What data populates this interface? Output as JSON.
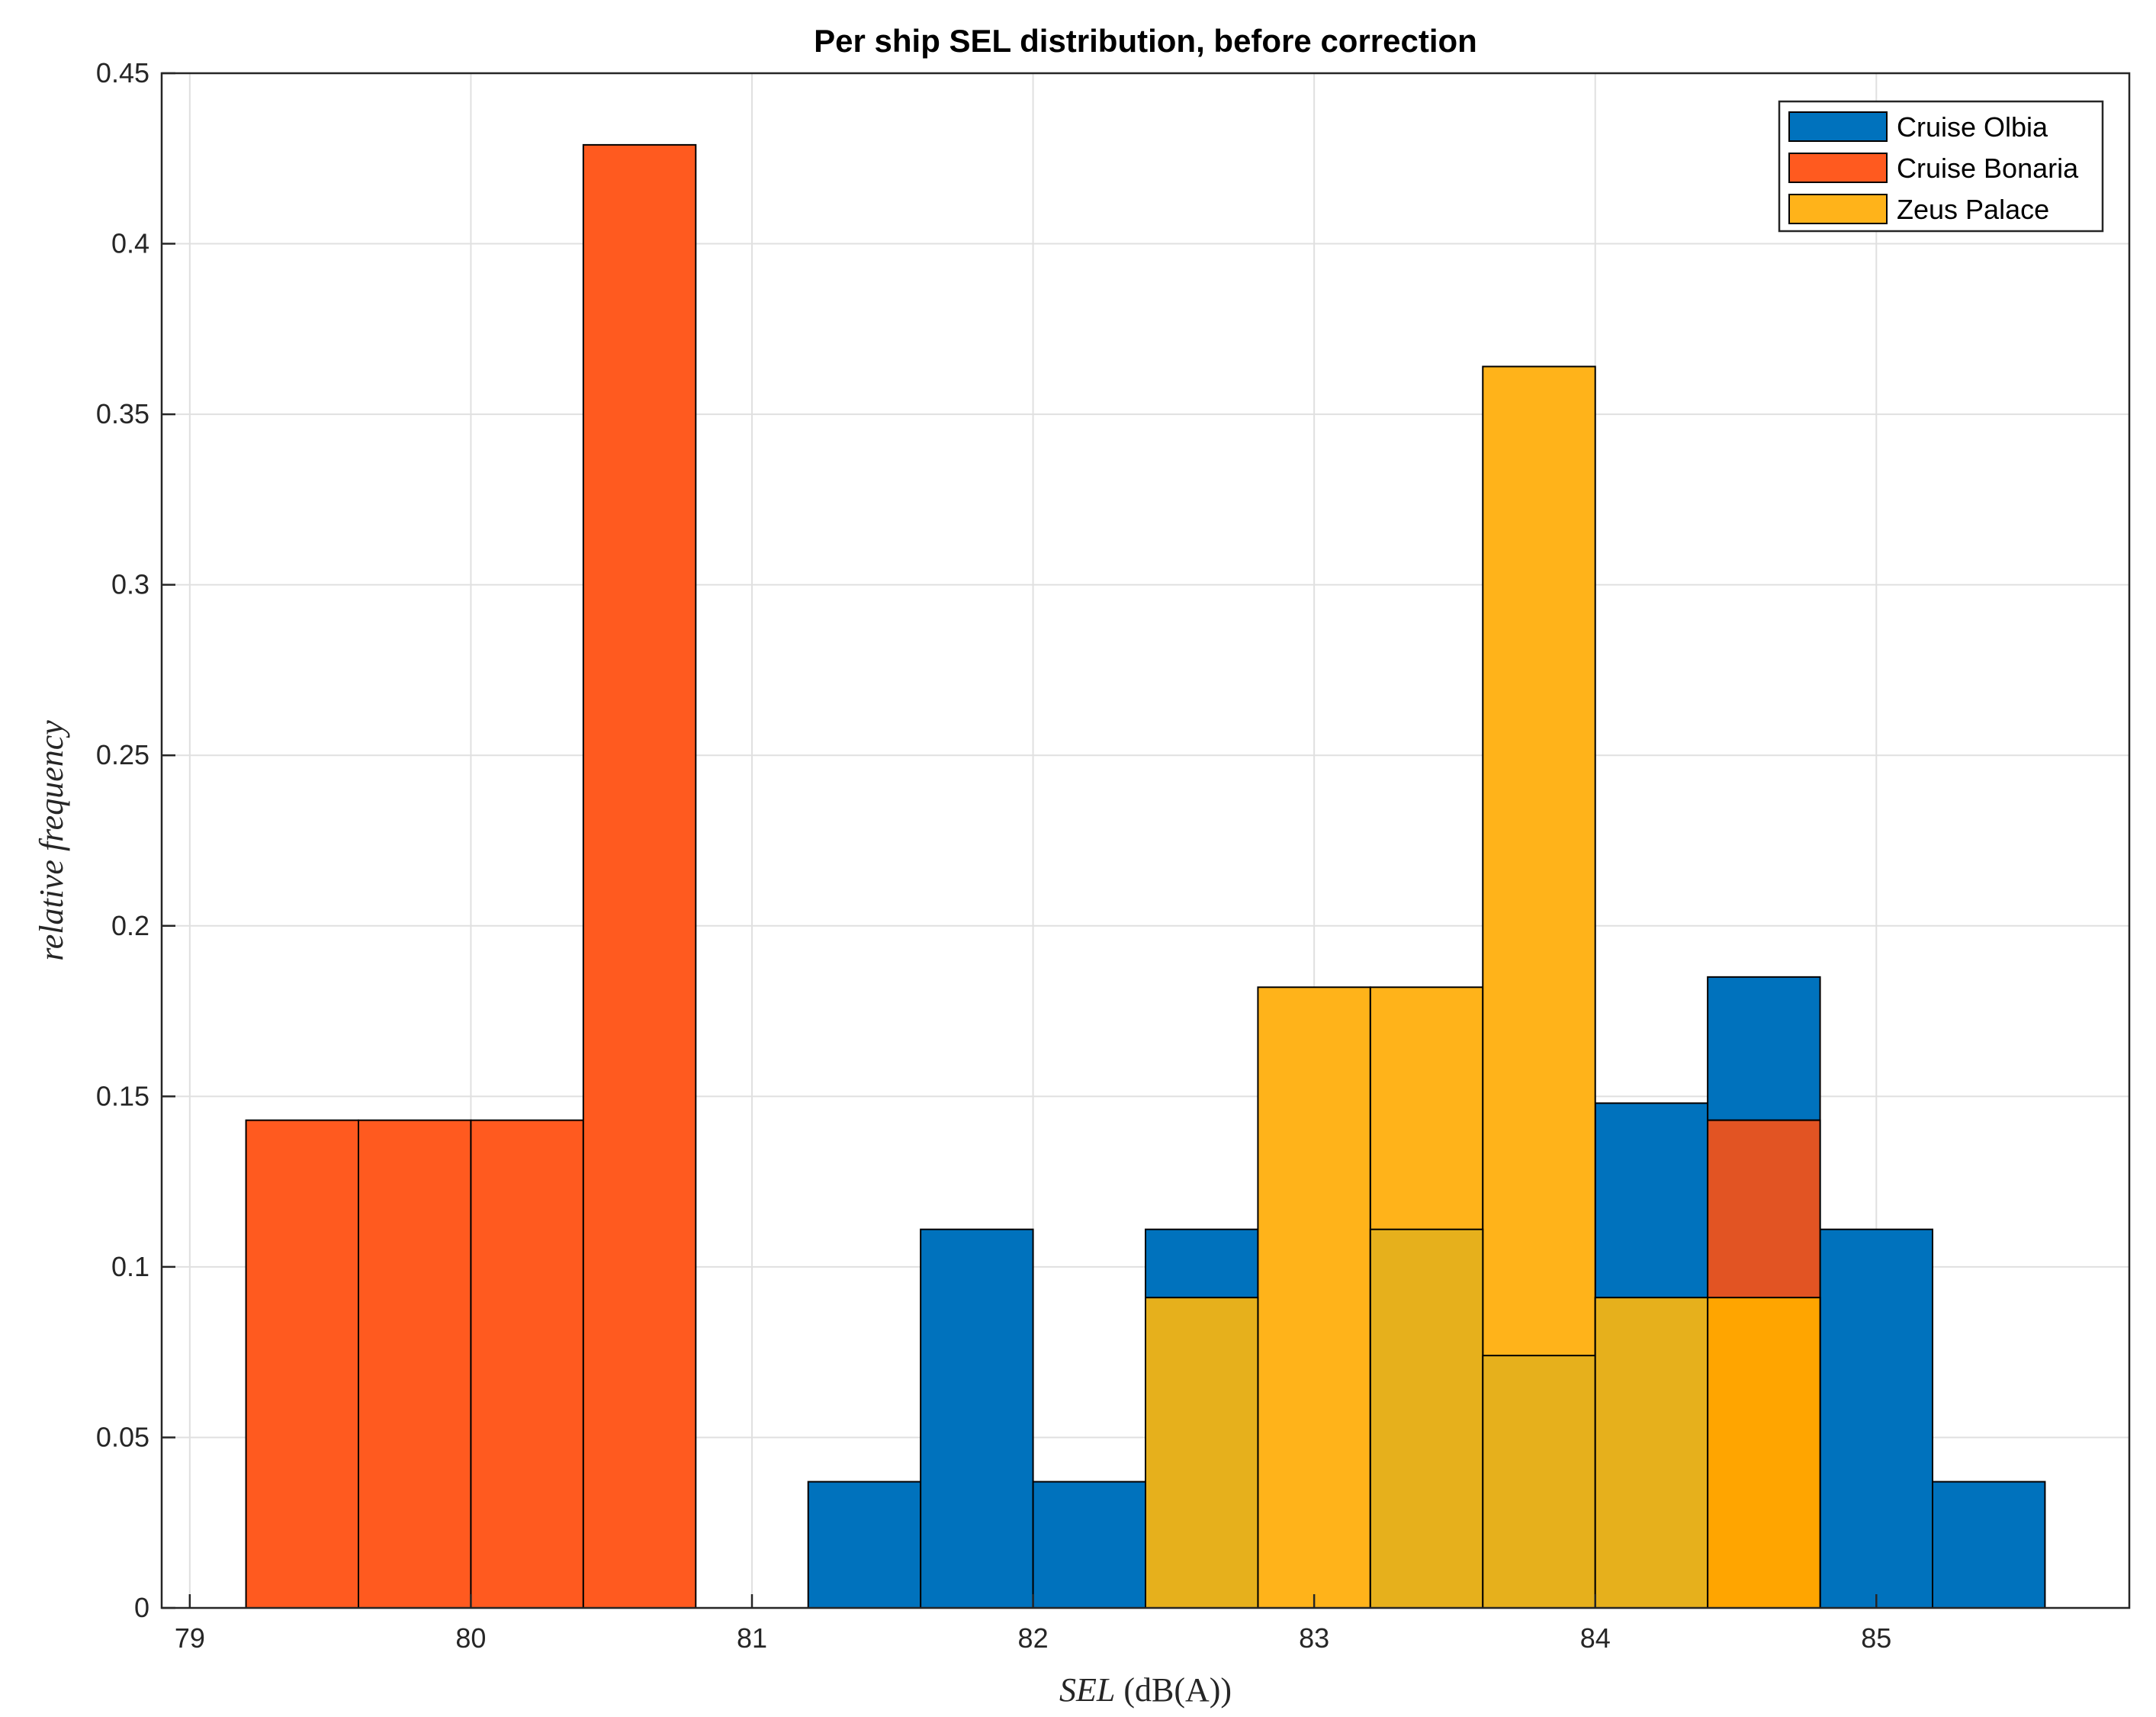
{
  "chart_data": {
    "type": "bar",
    "subtype": "overlaid-histogram",
    "title": "Per ship SEL distribution, before correction",
    "xlabel_italic": "SEL",
    "xlabel_unit": "(dB(A))",
    "ylabel": "relative frequency",
    "xlim": [
      78.9,
      85.9
    ],
    "ylim": [
      0,
      0.45
    ],
    "bin_width": 0.4,
    "x_ticks": [
      79,
      80,
      81,
      82,
      83,
      84,
      85
    ],
    "x_tick_labels": [
      "79",
      "80",
      "81",
      "82",
      "83",
      "84",
      "85"
    ],
    "y_ticks": [
      0,
      0.05,
      0.1,
      0.15,
      0.2,
      0.25,
      0.3,
      0.35,
      0.4,
      0.45
    ],
    "y_tick_labels": [
      "0",
      "0.05",
      "0.1",
      "0.15",
      "0.2",
      "0.25",
      "0.3",
      "0.35",
      "0.4",
      "0.45"
    ],
    "grid": true,
    "legend_position": "top-right",
    "series": [
      {
        "name": "Cruise Olbia",
        "color": "#0072BD",
        "bins": [
          {
            "x0": 81.2,
            "value": 0.037
          },
          {
            "x0": 81.6,
            "value": 0.111
          },
          {
            "x0": 82.0,
            "value": 0.037
          },
          {
            "x0": 82.4,
            "value": 0.111
          },
          {
            "x0": 82.8,
            "value": 0.0
          },
          {
            "x0": 83.2,
            "value": 0.111
          },
          {
            "x0": 83.6,
            "value": 0.074
          },
          {
            "x0": 84.0,
            "value": 0.148
          },
          {
            "x0": 84.4,
            "value": 0.185
          },
          {
            "x0": 84.8,
            "value": 0.111
          },
          {
            "x0": 85.2,
            "value": 0.037
          }
        ]
      },
      {
        "name": "Cruise Bonaria",
        "color": "#FF5A1F",
        "bins": [
          {
            "x0": 79.2,
            "value": 0.143
          },
          {
            "x0": 79.6,
            "value": 0.143
          },
          {
            "x0": 80.0,
            "value": 0.143
          },
          {
            "x0": 80.4,
            "value": 0.429
          },
          {
            "x0": 80.8,
            "value": 0.0
          },
          {
            "x0": 81.2,
            "value": 0.0
          },
          {
            "x0": 81.6,
            "value": 0.0
          },
          {
            "x0": 82.0,
            "value": 0.0
          },
          {
            "x0": 82.4,
            "value": 0.0
          },
          {
            "x0": 82.8,
            "value": 0.0
          },
          {
            "x0": 83.2,
            "value": 0.0
          },
          {
            "x0": 83.6,
            "value": 0.0
          },
          {
            "x0": 84.0,
            "value": 0.0
          },
          {
            "x0": 84.4,
            "value": 0.143
          }
        ]
      },
      {
        "name": "Zeus Palace",
        "color": "#FFB31A",
        "bins": [
          {
            "x0": 82.4,
            "value": 0.091
          },
          {
            "x0": 82.8,
            "value": 0.182
          },
          {
            "x0": 83.2,
            "value": 0.182
          },
          {
            "x0": 83.6,
            "value": 0.364
          },
          {
            "x0": 84.0,
            "value": 0.091
          },
          {
            "x0": 84.4,
            "value": 0.091
          }
        ]
      }
    ],
    "overlap_colors": {
      "olbia_bonaria": "#E25423",
      "olbia_zeus": "#E6B01C",
      "bonaria_zeus": "#FFA500"
    }
  }
}
